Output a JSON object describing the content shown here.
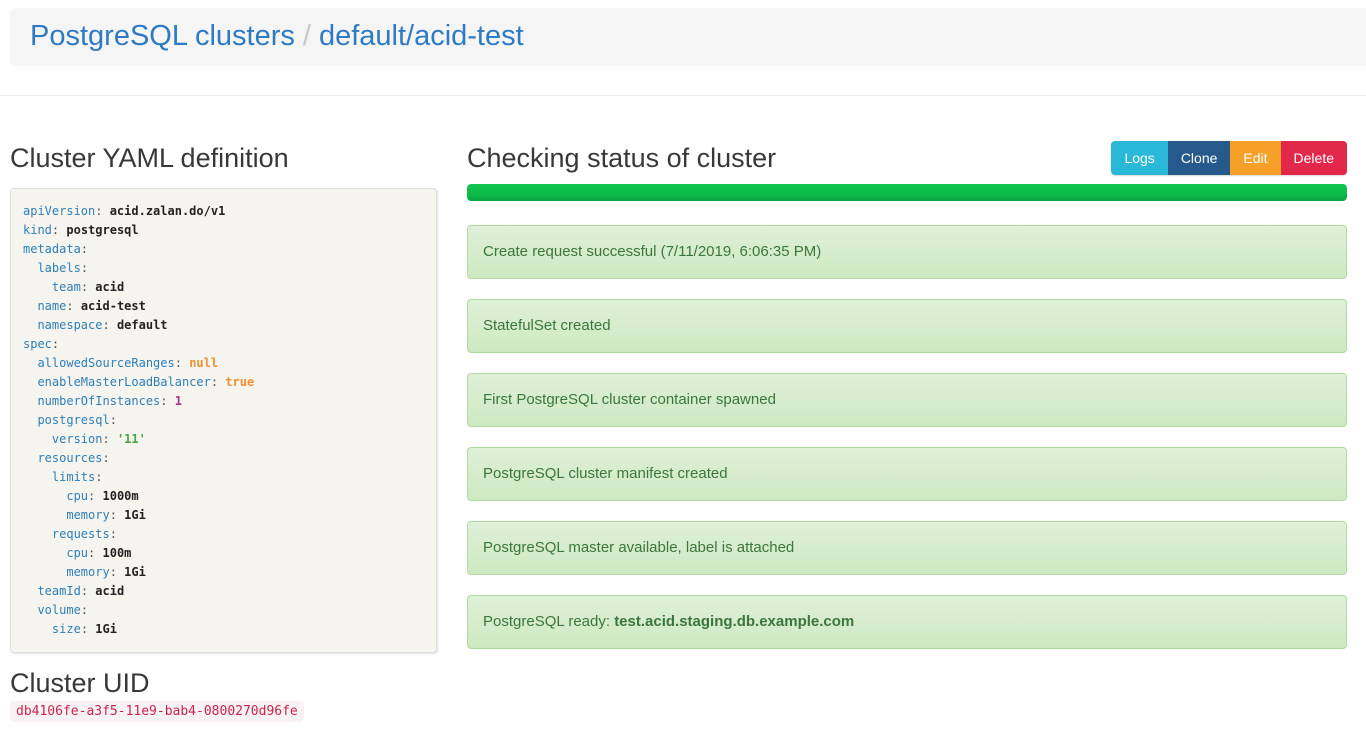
{
  "breadcrumb": {
    "root": "PostgreSQL clusters",
    "separator": "/",
    "current": "default/acid-test"
  },
  "yaml_section": {
    "title": "Cluster YAML definition",
    "lines": [
      {
        "indent": 0,
        "key": "apiVersion",
        "value": "acid.zalan.do/v1",
        "type": "plain"
      },
      {
        "indent": 0,
        "key": "kind",
        "value": "postgresql",
        "type": "plain"
      },
      {
        "indent": 0,
        "key": "metadata",
        "value": "",
        "type": "plain"
      },
      {
        "indent": 1,
        "key": "labels",
        "value": "",
        "type": "plain"
      },
      {
        "indent": 2,
        "key": "team",
        "value": "acid",
        "type": "plain"
      },
      {
        "indent": 1,
        "key": "name",
        "value": "acid-test",
        "type": "plain"
      },
      {
        "indent": 1,
        "key": "namespace",
        "value": "default",
        "type": "plain"
      },
      {
        "indent": 0,
        "key": "spec",
        "value": "",
        "type": "plain"
      },
      {
        "indent": 1,
        "key": "allowedSourceRanges",
        "value": "null",
        "type": "literal"
      },
      {
        "indent": 1,
        "key": "enableMasterLoadBalancer",
        "value": "true",
        "type": "literal"
      },
      {
        "indent": 1,
        "key": "numberOfInstances",
        "value": "1",
        "type": "number"
      },
      {
        "indent": 1,
        "key": "postgresql",
        "value": "",
        "type": "plain"
      },
      {
        "indent": 2,
        "key": "version",
        "value": "'11'",
        "type": "string"
      },
      {
        "indent": 1,
        "key": "resources",
        "value": "",
        "type": "plain"
      },
      {
        "indent": 2,
        "key": "limits",
        "value": "",
        "type": "plain"
      },
      {
        "indent": 3,
        "key": "cpu",
        "value": "1000m",
        "type": "plain"
      },
      {
        "indent": 3,
        "key": "memory",
        "value": "1Gi",
        "type": "plain"
      },
      {
        "indent": 2,
        "key": "requests",
        "value": "",
        "type": "plain"
      },
      {
        "indent": 3,
        "key": "cpu",
        "value": "100m",
        "type": "plain"
      },
      {
        "indent": 3,
        "key": "memory",
        "value": "1Gi",
        "type": "plain"
      },
      {
        "indent": 1,
        "key": "teamId",
        "value": "acid",
        "type": "plain"
      },
      {
        "indent": 1,
        "key": "volume",
        "value": "",
        "type": "plain"
      },
      {
        "indent": 2,
        "key": "size",
        "value": "1Gi",
        "type": "plain"
      }
    ]
  },
  "uid_section": {
    "title": "Cluster UID",
    "uid": "db4106fe-a3f5-11e9-bab4-0800270d96fe"
  },
  "status_section": {
    "title": "Checking status of cluster",
    "buttons": [
      {
        "label": "Logs",
        "color": "#29b8d8"
      },
      {
        "label": "Clone",
        "color": "#275a8c"
      },
      {
        "label": "Edit",
        "color": "#f5a028"
      },
      {
        "label": "Delete",
        "color": "#e2284a"
      }
    ],
    "progress_percent": 100,
    "messages": [
      {
        "segments": [
          {
            "text": "Create request successful (7/11/2019, 6:06:35 PM)",
            "bold": false
          }
        ]
      },
      {
        "segments": [
          {
            "text": "StatefulSet created",
            "bold": false
          }
        ]
      },
      {
        "segments": [
          {
            "text": "First PostgreSQL cluster container spawned",
            "bold": false
          }
        ]
      },
      {
        "segments": [
          {
            "text": "PostgreSQL cluster manifest created",
            "bold": false
          }
        ]
      },
      {
        "segments": [
          {
            "text": "PostgreSQL master available, label is attached",
            "bold": false
          }
        ]
      },
      {
        "segments": [
          {
            "text": "PostgreSQL ready: ",
            "bold": false
          },
          {
            "text": "test.acid.staging.db.example.com",
            "bold": true
          }
        ]
      }
    ]
  },
  "colors": {
    "link_blue": "#2e7bc4",
    "band_bg": "#f5f5f5",
    "yaml_panel_bg": "#f6f4ef",
    "yaml_key": "#2d7fb8",
    "yaml_literal": "#f09030",
    "yaml_number": "#ab2f82",
    "yaml_string": "#46a546",
    "progress_green": "#0dbb4a",
    "alert_bg_top": "#dff0d8",
    "alert_bg_bottom": "#cde9c2",
    "alert_border": "#b2dba1",
    "alert_text": "#3c763d",
    "uid_text": "#c7254e",
    "uid_bg": "#f9f2f4"
  }
}
